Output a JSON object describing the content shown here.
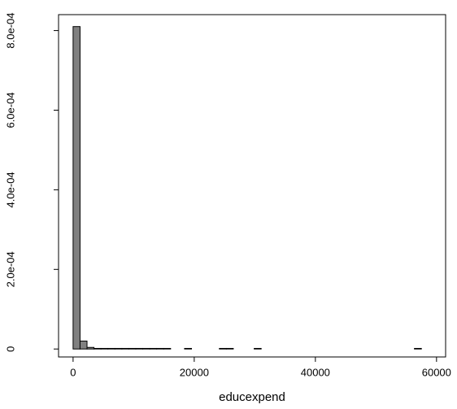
{
  "chart_data": {
    "type": "histogram",
    "x_label": "educexpend",
    "bins": [
      0,
      1150,
      2300,
      3450,
      4600,
      5750,
      6900,
      8050,
      9200,
      10350,
      11500,
      12650,
      13800,
      14950,
      16100,
      17250,
      18400,
      19550,
      20700,
      21850,
      23000,
      24150,
      25300,
      26450,
      27600,
      28750,
      29900,
      31050,
      32200,
      33350,
      34500,
      35650,
      36800,
      37950,
      39100,
      40250,
      41400,
      42550,
      43700,
      44850,
      46000,
      47150,
      48300,
      49450,
      50600,
      51750,
      52900,
      54050,
      55200,
      56350,
      57500
    ],
    "values": [
      0.00081,
      2e-05,
      4e-06,
      1.5e-06,
      1.5e-06,
      1.5e-06,
      1.5e-06,
      1.5e-06,
      1.5e-06,
      1.5e-06,
      1.5e-06,
      1.5e-06,
      1.5e-06,
      1.5e-06,
      0,
      0,
      1.5e-06,
      0,
      0,
      0,
      0,
      1.5e-06,
      1.5e-06,
      0,
      0,
      0,
      1.5e-06,
      0,
      0,
      0,
      0,
      0,
      0,
      0,
      0,
      0,
      0,
      0,
      0,
      0,
      0,
      0,
      0,
      0,
      0,
      0,
      0,
      0,
      0,
      1.5e-06
    ],
    "color": "#808080",
    "xlim": [
      -2400,
      61500
    ],
    "xticks": [
      0,
      20000,
      40000,
      60000
    ],
    "ylim": [
      -2e-05,
      0.00084
    ],
    "yticks": [
      0,
      {
        "value": 0.0002,
        "label": "2.0e-04"
      },
      {
        "value": 0.0004,
        "label": "4.0e-04"
      },
      {
        "value": 0.0006,
        "label": "6.0e-04"
      },
      {
        "value": 0.0008,
        "label": "8.0e-04"
      }
    ]
  }
}
